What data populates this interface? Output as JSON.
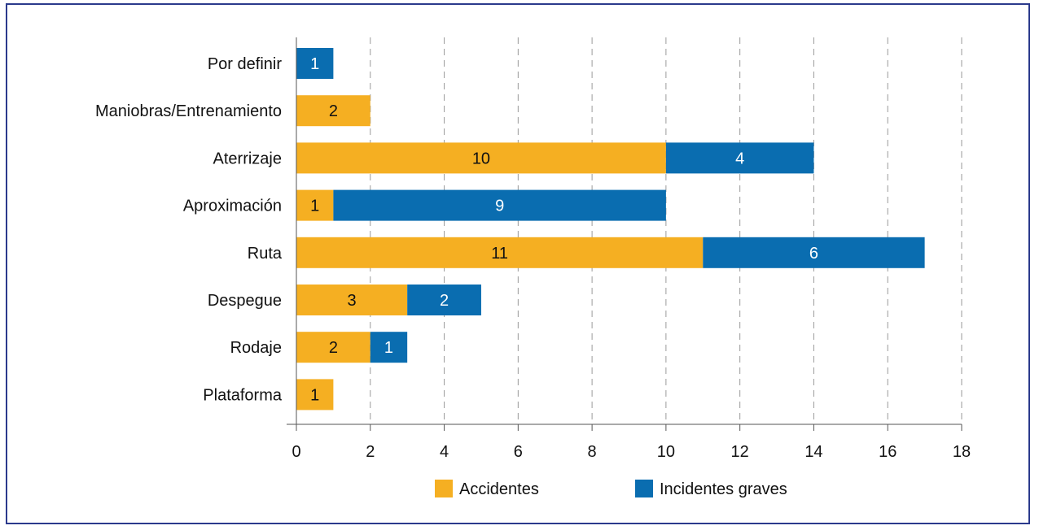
{
  "chart_data": {
    "type": "bar",
    "orientation": "horizontal",
    "stacked": true,
    "categories": [
      "Por definir",
      "Maniobras/Entrenamiento",
      "Aterrizaje",
      "Aproximación",
      "Ruta",
      "Despegue",
      "Rodaje",
      "Plataforma"
    ],
    "series": [
      {
        "name": "Accidentes",
        "color": "#F5AF22",
        "values": [
          0,
          2,
          10,
          1,
          11,
          3,
          2,
          1
        ]
      },
      {
        "name": "Incidentes graves",
        "color": "#0A6DB0",
        "values": [
          1,
          0,
          4,
          9,
          6,
          2,
          1,
          0
        ]
      }
    ],
    "xlim": [
      0,
      18
    ],
    "xticks": [
      "0",
      "2",
      "4",
      "6",
      "8",
      "10",
      "12",
      "14",
      "16",
      "18"
    ],
    "grid": "vertical dashed",
    "legend": "bottom"
  }
}
